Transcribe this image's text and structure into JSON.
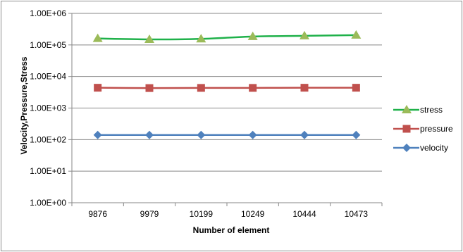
{
  "chart_data": {
    "type": "line",
    "x_scale": "category",
    "y_scale": "log",
    "categories": [
      "9876",
      "9979",
      "10199",
      "10249",
      "10444",
      "10473"
    ],
    "xlabel": "Number of element",
    "ylabel": "Velocity,Pressure,Stress",
    "ylim": [
      1,
      1000000
    ],
    "y_ticks": [
      1,
      10,
      100,
      1000,
      10000,
      100000,
      1000000
    ],
    "y_tick_labels": [
      "1.00E+00",
      "1.00E+01",
      "1.00E+02",
      "1.00E+03",
      "1.00E+04",
      "1.00E+05",
      "1.00E+06"
    ],
    "grid": "horizontal",
    "legend_position": "right",
    "series": [
      {
        "name": "stress",
        "color": "#1fb14a",
        "marker": "triangle",
        "marker_color": "#9bbb59",
        "values": [
          160000,
          150000,
          155000,
          185000,
          195000,
          205000
        ]
      },
      {
        "name": "pressure",
        "color": "#c0504d",
        "marker": "square",
        "marker_color": "#c0504d",
        "values": [
          4400,
          4300,
          4350,
          4350,
          4400,
          4400
        ]
      },
      {
        "name": "velocity",
        "color": "#4f81bd",
        "marker": "diamond",
        "marker_color": "#4f81bd",
        "values": [
          140,
          140,
          140,
          140,
          140,
          140
        ]
      }
    ]
  }
}
